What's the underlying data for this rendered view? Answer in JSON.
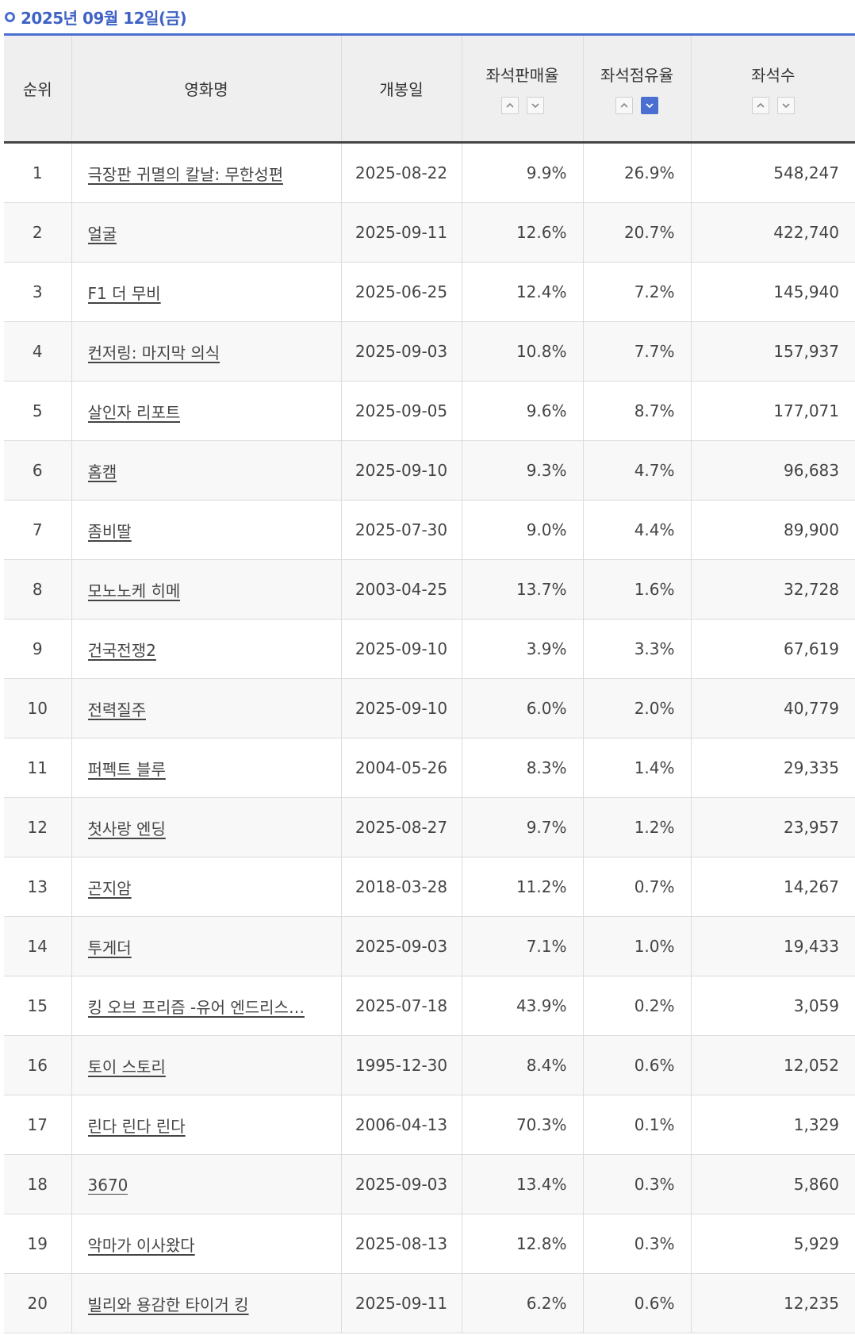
{
  "date_header": "2025년 09월 12일(금)",
  "colors": {
    "accent": "#4a6fd0",
    "header_bg": "#efefef",
    "row_alt_bg": "#f8f8f8"
  },
  "columns": {
    "rank": "순위",
    "title": "영화명",
    "release_date": "개봉일",
    "sales_rate": "좌석판매율",
    "share_rate": "좌석점유율",
    "seats": "좌석수"
  },
  "sort_controls": {
    "sales_rate": {
      "asc_icon": "chevron-up-icon",
      "desc_icon": "chevron-down-icon",
      "active": "none"
    },
    "share_rate": {
      "asc_icon": "chevron-up-icon",
      "desc_icon": "chevron-down-icon",
      "active": "desc"
    },
    "seats": {
      "asc_icon": "chevron-up-icon",
      "desc_icon": "chevron-down-icon",
      "active": "none"
    }
  },
  "rows": [
    {
      "rank": "1",
      "title": "극장판 귀멸의 칼날: 무한성편",
      "release_date": "2025-08-22",
      "sales_rate": "9.9%",
      "share_rate": "26.9%",
      "seats": "548,247"
    },
    {
      "rank": "2",
      "title": "얼굴",
      "release_date": "2025-09-11",
      "sales_rate": "12.6%",
      "share_rate": "20.7%",
      "seats": "422,740"
    },
    {
      "rank": "3",
      "title": "F1 더 무비",
      "release_date": "2025-06-25",
      "sales_rate": "12.4%",
      "share_rate": "7.2%",
      "seats": "145,940"
    },
    {
      "rank": "4",
      "title": "컨저링: 마지막 의식",
      "release_date": "2025-09-03",
      "sales_rate": "10.8%",
      "share_rate": "7.7%",
      "seats": "157,937"
    },
    {
      "rank": "5",
      "title": "살인자 리포트",
      "release_date": "2025-09-05",
      "sales_rate": "9.6%",
      "share_rate": "8.7%",
      "seats": "177,071"
    },
    {
      "rank": "6",
      "title": "홈캠",
      "release_date": "2025-09-10",
      "sales_rate": "9.3%",
      "share_rate": "4.7%",
      "seats": "96,683"
    },
    {
      "rank": "7",
      "title": "좀비딸",
      "release_date": "2025-07-30",
      "sales_rate": "9.0%",
      "share_rate": "4.4%",
      "seats": "89,900"
    },
    {
      "rank": "8",
      "title": "모노노케 히메",
      "release_date": "2003-04-25",
      "sales_rate": "13.7%",
      "share_rate": "1.6%",
      "seats": "32,728"
    },
    {
      "rank": "9",
      "title": "건국전쟁2",
      "release_date": "2025-09-10",
      "sales_rate": "3.9%",
      "share_rate": "3.3%",
      "seats": "67,619"
    },
    {
      "rank": "10",
      "title": "전력질주",
      "release_date": "2025-09-10",
      "sales_rate": "6.0%",
      "share_rate": "2.0%",
      "seats": "40,779"
    },
    {
      "rank": "11",
      "title": "퍼펙트 블루",
      "release_date": "2004-05-26",
      "sales_rate": "8.3%",
      "share_rate": "1.4%",
      "seats": "29,335"
    },
    {
      "rank": "12",
      "title": "첫사랑 엔딩",
      "release_date": "2025-08-27",
      "sales_rate": "9.7%",
      "share_rate": "1.2%",
      "seats": "23,957"
    },
    {
      "rank": "13",
      "title": "곤지암",
      "release_date": "2018-03-28",
      "sales_rate": "11.2%",
      "share_rate": "0.7%",
      "seats": "14,267"
    },
    {
      "rank": "14",
      "title": "투게더",
      "release_date": "2025-09-03",
      "sales_rate": "7.1%",
      "share_rate": "1.0%",
      "seats": "19,433"
    },
    {
      "rank": "15",
      "title": "킹 오브 프리즘 -유어 엔드리스…",
      "release_date": "2025-07-18",
      "sales_rate": "43.9%",
      "share_rate": "0.2%",
      "seats": "3,059"
    },
    {
      "rank": "16",
      "title": "토이 스토리",
      "release_date": "1995-12-30",
      "sales_rate": "8.4%",
      "share_rate": "0.6%",
      "seats": "12,052"
    },
    {
      "rank": "17",
      "title": "린다 린다 린다",
      "release_date": "2006-04-13",
      "sales_rate": "70.3%",
      "share_rate": "0.1%",
      "seats": "1,329"
    },
    {
      "rank": "18",
      "title": "3670",
      "release_date": "2025-09-03",
      "sales_rate": "13.4%",
      "share_rate": "0.3%",
      "seats": "5,860"
    },
    {
      "rank": "19",
      "title": "악마가 이사왔다",
      "release_date": "2025-08-13",
      "sales_rate": "12.8%",
      "share_rate": "0.3%",
      "seats": "5,929"
    },
    {
      "rank": "20",
      "title": "빌리와 용감한 타이거 킹",
      "release_date": "2025-09-11",
      "sales_rate": "6.2%",
      "share_rate": "0.6%",
      "seats": "12,235"
    }
  ]
}
